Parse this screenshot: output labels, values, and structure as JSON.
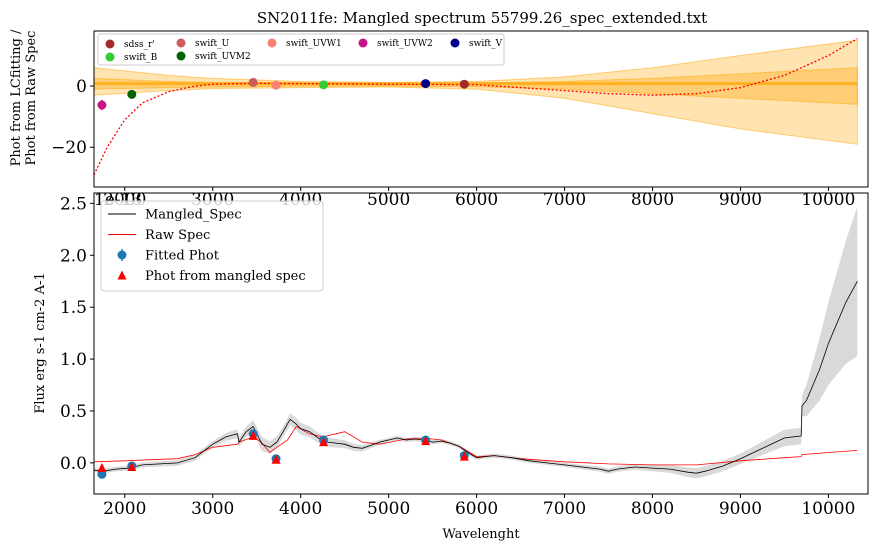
{
  "chart_data": [
    {
      "type": "line",
      "title": "SN2011fe: Mangled spectrum 55799.26_spec_extended.txt",
      "xlabel": "",
      "ylabel_lines": [
        "Phot from LCfitting /",
        "Phot from Raw Spec"
      ],
      "xlim": [
        1650,
        10450
      ],
      "ylim": [
        -33,
        18
      ],
      "xticks": [
        2000,
        3000,
        4000,
        5000,
        6000,
        7000,
        8000,
        9000,
        10000
      ],
      "xtick_labels": [
        "2000",
        "3000",
        "4000",
        "5000",
        "6000",
        "7000",
        "8000",
        "9000",
        "10000"
      ],
      "xtick_overlap_label": "1e-13",
      "yticks": [
        -20,
        0
      ],
      "ytick_labels": [
        "−20",
        "0"
      ],
      "legend_position": "top-left",
      "points": [
        {
          "name": "sdss_r'",
          "color": "#a52a2a",
          "x": 5860,
          "y": 0.6
        },
        {
          "name": "swift_B",
          "color": "#32cd32",
          "x": 4260,
          "y": 0.4
        },
        {
          "name": "swift_U",
          "color": "#cd5c5c",
          "x": 3460,
          "y": 1.2
        },
        {
          "name": "swift_UVM2",
          "color": "#006400",
          "x": 2080,
          "y": -2.7
        },
        {
          "name": "swift_UVW1",
          "color": "#fa8072",
          "x": 3720,
          "y": 0.3
        },
        {
          "name": "swift_UVW2",
          "color": "#c71585",
          "x": 1740,
          "y": -6.2
        },
        {
          "name": "swift_V",
          "color": "#00008b",
          "x": 5420,
          "y": 0.8
        }
      ],
      "ratio_curve": {
        "color": "#ff0000",
        "x": [
          1650,
          1800,
          2000,
          2200,
          2500,
          2800,
          3000,
          3500,
          4000,
          5000,
          6000,
          6500,
          7000,
          7500,
          8000,
          8500,
          9000,
          9500,
          10000,
          10330
        ],
        "y": [
          -29,
          -20,
          -11,
          -5.5,
          -1.8,
          0,
          0.6,
          0.9,
          0.8,
          0.6,
          0.4,
          -0.5,
          -1.5,
          -2.5,
          -3,
          -2.5,
          -0.5,
          3.5,
          10,
          15.5
        ]
      },
      "band_color": "#ffa500",
      "band_x": [
        1650,
        2500,
        3000,
        4000,
        5000,
        6000,
        7000,
        8000,
        9000,
        10330
      ],
      "band_outer_upper": [
        6,
        3.5,
        2.5,
        1.5,
        1.2,
        1.5,
        3,
        6,
        10,
        15
      ],
      "band_outer_lower": [
        -3,
        -1.5,
        -0.8,
        -0.5,
        -0.3,
        -1,
        -4,
        -9,
        -14,
        -19
      ],
      "band_inner_upper": [
        2.5,
        1.5,
        1.2,
        1,
        0.8,
        1,
        1.5,
        2.5,
        4,
        6
      ],
      "band_inner_lower": [
        -1,
        -0.5,
        -0.3,
        0,
        0,
        -0.2,
        -1,
        -2.5,
        -4,
        -6
      ]
    },
    {
      "type": "line",
      "title": "",
      "xlabel": "Wavelenght",
      "ylabel": "Flux erg s-1 cm-2 A-1",
      "xlim": [
        1650,
        10450
      ],
      "ylim": [
        -0.3,
        2.6
      ],
      "xticks": [
        2000,
        3000,
        4000,
        5000,
        6000,
        7000,
        8000,
        9000,
        10000
      ],
      "xtick_labels": [
        "2000",
        "3000",
        "4000",
        "5000",
        "6000",
        "7000",
        "8000",
        "9000",
        "10000"
      ],
      "yticks": [
        0.0,
        0.5,
        1.0,
        1.5,
        2.0,
        2.5
      ],
      "ytick_labels": [
        "0.0",
        "0.5",
        "1.0",
        "1.5",
        "2.0",
        "2.5"
      ],
      "legend_position": "top-left",
      "legend": [
        {
          "label": "Mangled_Spec",
          "kind": "line",
          "color": "#000000"
        },
        {
          "label": "Raw Spec",
          "kind": "line",
          "color": "#ff0000"
        },
        {
          "label": "Fitted Phot",
          "kind": "errpoint",
          "color": "#1f77b4"
        },
        {
          "label": "Phot from mangled spec",
          "kind": "triangle",
          "color": "#ff0000"
        }
      ],
      "series": [
        {
          "name": "Mangled_Spec",
          "color": "#000000",
          "x": [
            1650,
            1750,
            1900,
            2050,
            2200,
            2400,
            2600,
            2800,
            3000,
            3150,
            3280,
            3300,
            3380,
            3460,
            3560,
            3650,
            3730,
            3800,
            3880,
            3940,
            4000,
            4100,
            4200,
            4300,
            4400,
            4500,
            4600,
            4700,
            4800,
            4900,
            5000,
            5100,
            5200,
            5300,
            5400,
            5500,
            5600,
            5700,
            5800,
            5900,
            6000,
            6100,
            6200,
            6400,
            6600,
            6800,
            7000,
            7200,
            7400,
            7500,
            7600,
            7800,
            8000,
            8200,
            8400,
            8500,
            8600,
            8800,
            9000,
            9200,
            9400,
            9500,
            9600,
            9690,
            9700,
            9750,
            9800,
            9900,
            10000,
            10100,
            10200,
            10330
          ],
          "y": [
            -0.07,
            -0.08,
            -0.06,
            -0.05,
            -0.02,
            -0.01,
            0.0,
            0.05,
            0.18,
            0.25,
            0.28,
            0.2,
            0.3,
            0.35,
            0.18,
            0.15,
            0.2,
            0.3,
            0.42,
            0.38,
            0.33,
            0.3,
            0.24,
            0.2,
            0.19,
            0.18,
            0.15,
            0.14,
            0.17,
            0.2,
            0.22,
            0.24,
            0.22,
            0.23,
            0.22,
            0.2,
            0.21,
            0.19,
            0.16,
            0.1,
            0.05,
            0.06,
            0.07,
            0.05,
            0.02,
            0.0,
            -0.02,
            -0.04,
            -0.06,
            -0.08,
            -0.06,
            -0.04,
            -0.05,
            -0.06,
            -0.09,
            -0.1,
            -0.08,
            -0.03,
            0.04,
            0.12,
            0.2,
            0.24,
            0.25,
            0.26,
            0.55,
            0.6,
            0.7,
            0.9,
            1.15,
            1.35,
            1.55,
            1.75
          ]
        },
        {
          "name": "Raw Spec",
          "color": "#ff0000",
          "x": [
            1650,
            2000,
            2300,
            2600,
            2800,
            3000,
            3280,
            3300,
            3460,
            3550,
            3650,
            3730,
            3850,
            3950,
            4100,
            4250,
            4400,
            4500,
            4700,
            4900,
            5200,
            5400,
            5600,
            5800,
            6000,
            6200,
            6500,
            7000,
            7500,
            8000,
            8500,
            9000,
            9500,
            9690,
            9700,
            10000,
            10330
          ],
          "y": [
            0.01,
            0.02,
            0.03,
            0.04,
            0.08,
            0.15,
            0.18,
            0.2,
            0.25,
            0.2,
            0.1,
            0.15,
            0.22,
            0.35,
            0.28,
            0.25,
            0.28,
            0.3,
            0.2,
            0.18,
            0.23,
            0.24,
            0.22,
            0.16,
            0.06,
            0.07,
            0.04,
            0.01,
            -0.01,
            -0.02,
            -0.02,
            0.02,
            0.05,
            0.06,
            0.08,
            0.1,
            0.12
          ]
        }
      ],
      "uncertainty_band": {
        "color": "#c0c0c0",
        "x": [
          1650,
          3000,
          3400,
          3500,
          3800,
          3900,
          5000,
          7000,
          8000,
          8500,
          9000,
          9500,
          9690,
          9700,
          10000,
          10330
        ],
        "half_width": [
          0.02,
          0.03,
          0.05,
          0.07,
          0.05,
          0.06,
          0.02,
          0.02,
          0.03,
          0.05,
          0.05,
          0.08,
          0.08,
          0.1,
          0.4,
          0.72
        ]
      },
      "fitted_phot": {
        "x": [
          1740,
          2080,
          3460,
          3720,
          4260,
          5420,
          5860
        ],
        "y": [
          -0.11,
          -0.03,
          0.28,
          0.04,
          0.22,
          0.22,
          0.07
        ]
      },
      "phot_from_mangled": {
        "x": [
          1740,
          2080,
          3460,
          3720,
          4260,
          5420,
          5860
        ],
        "y": [
          -0.05,
          -0.04,
          0.26,
          0.03,
          0.2,
          0.21,
          0.06
        ]
      }
    }
  ]
}
